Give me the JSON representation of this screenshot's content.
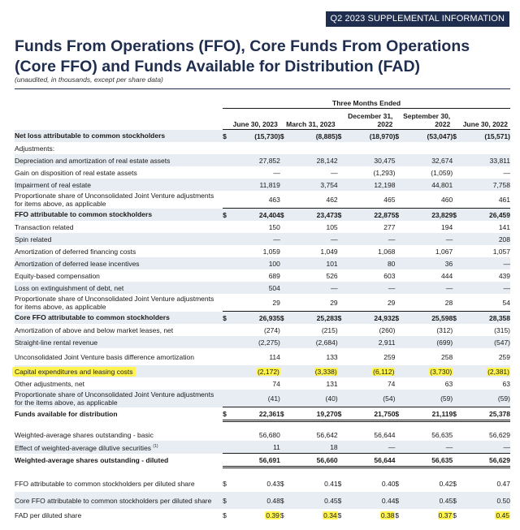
{
  "banner": "Q2 2023 SUPPLEMENTAL INFORMATION",
  "title": "Funds From Operations (FFO), Core Funds From Operations (Core FFO) and Funds Available for Distribution (FAD)",
  "subtitle": "(unaudited, in thousands, except per share data)",
  "header": {
    "period_group": "Three Months Ended",
    "columns": [
      "June 30, 2023",
      "March 31, 2023",
      "December 31, 2022",
      "September 30, 2022",
      "June 30, 2022"
    ]
  },
  "dollar": "$",
  "footnote_mark": "(1)",
  "rows": {
    "net_loss": {
      "label": "Net loss attributable to common stockholders",
      "v": [
        "(15,730)",
        "(8,885)",
        "(18,970)",
        "(53,047)",
        "(15,571)"
      ]
    },
    "adjustments": {
      "label": "Adjustments:"
    },
    "dep_amort": {
      "label": "Depreciation and amortization of real estate assets",
      "v": [
        "27,852",
        "28,142",
        "30,475",
        "32,674",
        "33,811"
      ]
    },
    "gain_disp": {
      "label": "Gain on disposition of real estate assets",
      "v": [
        "—",
        "—",
        "(1,293)",
        "(1,059)",
        "—"
      ]
    },
    "impairment": {
      "label": "Impairment of real estate",
      "v": [
        "11,819",
        "3,754",
        "12,198",
        "44,801",
        "7,758"
      ]
    },
    "ujv_share1": {
      "label": "Proportionate share of Unconsolidated Joint Venture adjustments for items above, as applicable",
      "v": [
        "463",
        "462",
        "465",
        "460",
        "461"
      ]
    },
    "ffo": {
      "label": "FFO attributable to common stockholders",
      "v": [
        "24,404",
        "23,473",
        "22,875",
        "23,829",
        "26,459"
      ]
    },
    "transaction": {
      "label": "Transaction related",
      "v": [
        "150",
        "105",
        "277",
        "194",
        "141"
      ]
    },
    "spin": {
      "label": "Spin related",
      "v": [
        "—",
        "—",
        "—",
        "—",
        "208"
      ]
    },
    "amort_fin": {
      "label": "Amortization of deferred financing costs",
      "v": [
        "1,059",
        "1,049",
        "1,068",
        "1,067",
        "1,057"
      ]
    },
    "amort_lease": {
      "label": "Amortization of deferred lease incentives",
      "v": [
        "100",
        "101",
        "80",
        "36",
        "—"
      ]
    },
    "equity_comp": {
      "label": "Equity-based compensation",
      "v": [
        "689",
        "526",
        "603",
        "444",
        "439"
      ]
    },
    "loss_debt": {
      "label": "Loss on extinguishment of debt, net",
      "v": [
        "504",
        "—",
        "—",
        "—",
        "—"
      ]
    },
    "ujv_share2": {
      "label": "Proportionate share of Unconsolidated Joint Venture adjustments for items above, as applicable",
      "v": [
        "29",
        "29",
        "29",
        "28",
        "54"
      ]
    },
    "core_ffo": {
      "label": "Core FFO attributable to common stockholders",
      "v": [
        "26,935",
        "25,283",
        "24,932",
        "25,598",
        "28,358"
      ]
    },
    "amort_market": {
      "label": "Amortization of above and below market leases, net",
      "v": [
        "(274)",
        "(215)",
        "(260)",
        "(312)",
        "(315)"
      ]
    },
    "straight_line": {
      "label": "Straight-line rental revenue",
      "v": [
        "(2,275)",
        "(2,684)",
        "2,911",
        "(699)",
        "(547)"
      ]
    },
    "ujv_basis": {
      "label": "Unconsolidated Joint Venture basis difference amortization",
      "v": [
        "114",
        "133",
        "259",
        "258",
        "259"
      ]
    },
    "capex": {
      "label": "Capital expenditures and leasing costs",
      "v": [
        "(2,172)",
        "(3,338)",
        "(6,112)",
        "(3,730)",
        "(2,381)"
      ]
    },
    "other_adj": {
      "label": "Other adjustments, net",
      "v": [
        "74",
        "131",
        "74",
        "63",
        "63"
      ]
    },
    "ujv_share3": {
      "label": "Proportionate share of Unconsolidated Joint Venture adjustments for the items above, as applicable",
      "v": [
        "(41)",
        "(40)",
        "(54)",
        "(59)",
        "(59)"
      ]
    },
    "fad": {
      "label": "Funds available for distribution",
      "v": [
        "22,361",
        "19,270",
        "21,750",
        "21,119",
        "25,378"
      ]
    },
    "wa_basic": {
      "label": "Weighted-average shares outstanding - basic",
      "v": [
        "56,680",
        "56,642",
        "56,644",
        "56,635",
        "56,629"
      ]
    },
    "dilutive": {
      "label": "Effect of weighted-average dilutive securities",
      "v": [
        "11",
        "18",
        "—",
        "—",
        "—"
      ]
    },
    "wa_diluted": {
      "label": "Weighted-average shares outstanding - diluted",
      "v": [
        "56,691",
        "56,660",
        "56,644",
        "56,635",
        "56,629"
      ]
    },
    "ffo_ps": {
      "label": "FFO attributable to common stockholders per diluted share",
      "v": [
        "0.43",
        "0.41",
        "0.40",
        "0.42",
        "0.47"
      ]
    },
    "core_ffo_ps": {
      "label": "Core FFO attributable to common stockholders per diluted share",
      "v": [
        "0.48",
        "0.45",
        "0.44",
        "0.45",
        "0.50"
      ]
    },
    "fad_ps": {
      "label": "FAD per diluted share",
      "v": [
        "0.39",
        "0.34",
        "0.38",
        "0.37",
        "0.45"
      ]
    }
  },
  "colors": {
    "navy": "#1f2d4e",
    "shade": "#e8edf3",
    "highlight": "#fff44f"
  }
}
